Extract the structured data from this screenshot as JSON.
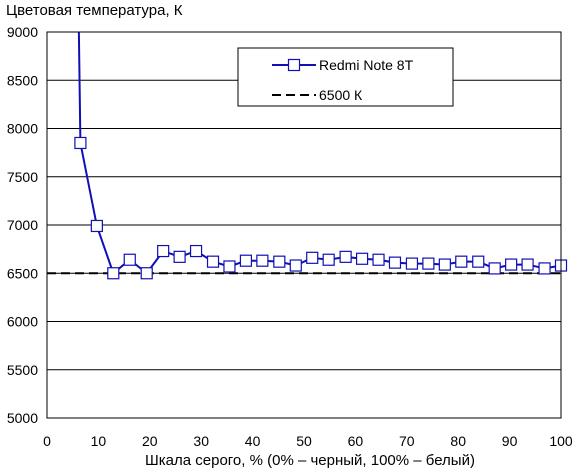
{
  "chart_data": {
    "type": "line",
    "title": "",
    "ylabel": "Цветовая температура, К",
    "xlabel": "Шкала серого, % (0% – черный, 100% – белый)",
    "xlim": [
      0,
      100
    ],
    "ylim": [
      5000,
      9000
    ],
    "xticks": [
      0,
      10,
      20,
      30,
      40,
      50,
      60,
      70,
      80,
      90,
      100
    ],
    "yticks": [
      5000,
      5500,
      6000,
      6500,
      7000,
      7500,
      8000,
      8500,
      9000
    ],
    "grid": "horizontal",
    "legend_position": "top-right",
    "series": [
      {
        "name": "Redmi Note 8T",
        "color": "#1010b4",
        "marker": "square",
        "line_only_start": {
          "x": 6.2,
          "y": 9000
        },
        "x": [
          6.5,
          9.7,
          12.9,
          16.1,
          19.4,
          22.6,
          25.8,
          29.0,
          32.3,
          35.5,
          38.7,
          41.9,
          45.2,
          48.4,
          51.6,
          54.8,
          58.1,
          61.3,
          64.5,
          67.7,
          71.0,
          74.2,
          77.4,
          80.6,
          83.9,
          87.1,
          90.3,
          93.5,
          96.8,
          100.0
        ],
        "y": [
          7850,
          6990,
          6500,
          6640,
          6500,
          6730,
          6670,
          6730,
          6620,
          6570,
          6630,
          6630,
          6620,
          6580,
          6660,
          6640,
          6670,
          6650,
          6640,
          6610,
          6600,
          6600,
          6590,
          6620,
          6620,
          6550,
          6590,
          6590,
          6550,
          6580
        ]
      },
      {
        "name": "6500 К",
        "color": "#000000",
        "style": "dashed",
        "y_constant": 6500
      }
    ]
  }
}
